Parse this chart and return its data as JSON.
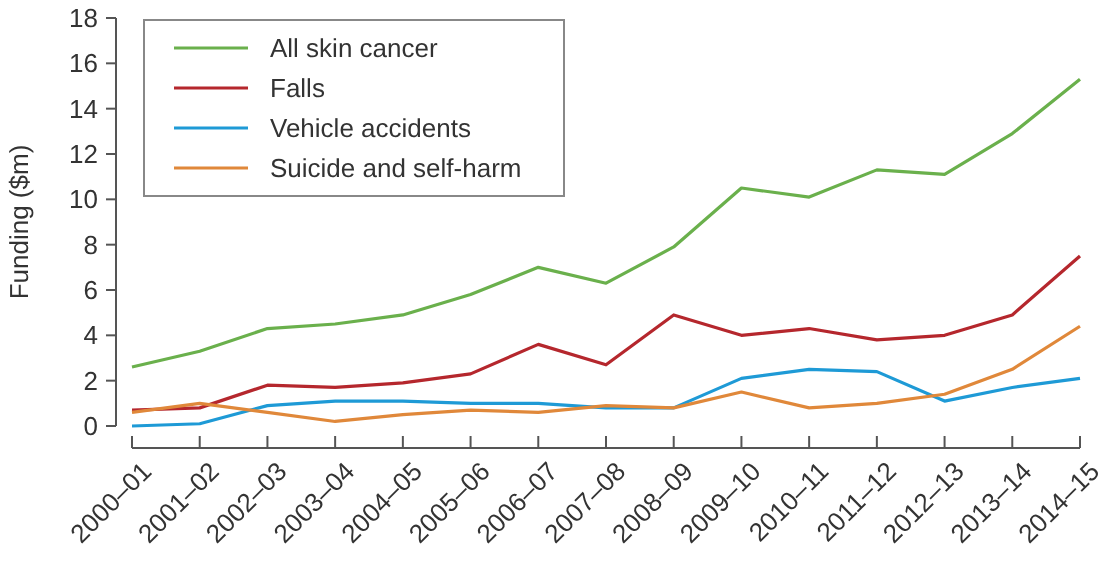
{
  "chart_data": {
    "type": "line",
    "ylabel": "Funding ($m)",
    "categories": [
      "2000–01",
      "2001–02",
      "2002–03",
      "2003–04",
      "2004–05",
      "2005–06",
      "2006–07",
      "2007–08",
      "2008–09",
      "2009–10",
      "2010–11",
      "2011–12",
      "2012–13",
      "2013–14",
      "2014–15"
    ],
    "ylim": [
      0,
      18
    ],
    "yticks": [
      0,
      2,
      4,
      6,
      8,
      10,
      12,
      14,
      16,
      18
    ],
    "grid": false,
    "legend": "top left",
    "marker": "none",
    "series": [
      {
        "name": "All skin cancer",
        "color": "#6ab04c",
        "values": [
          2.6,
          3.3,
          4.3,
          4.5,
          4.9,
          5.8,
          7.0,
          6.3,
          7.9,
          10.5,
          10.1,
          11.3,
          11.1,
          12.9,
          15.3
        ]
      },
      {
        "name": "Falls",
        "color": "#b5272d",
        "values": [
          0.7,
          0.8,
          1.8,
          1.7,
          1.9,
          2.3,
          3.6,
          2.7,
          4.9,
          4.0,
          4.3,
          3.8,
          4.0,
          4.9,
          7.5
        ]
      },
      {
        "name": "Vehicle accidents",
        "color": "#1e9ad6",
        "values": [
          0.0,
          0.1,
          0.9,
          1.1,
          1.1,
          1.0,
          1.0,
          0.8,
          0.8,
          2.1,
          2.5,
          2.4,
          1.1,
          1.7,
          2.1
        ]
      },
      {
        "name": "Suicide and self-harm",
        "color": "#e0883a",
        "values": [
          0.6,
          1.0,
          0.6,
          0.2,
          0.5,
          0.7,
          0.6,
          0.9,
          0.8,
          1.5,
          0.8,
          1.0,
          1.4,
          2.5,
          4.4
        ]
      }
    ]
  }
}
